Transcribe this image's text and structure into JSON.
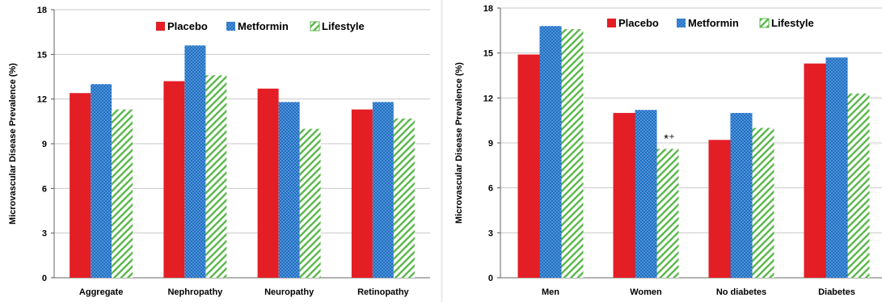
{
  "colors": {
    "placebo": "#e31e24",
    "metformin": "#1f6fc4",
    "lifestyle": "#5ab74a"
  },
  "chart_data": [
    {
      "type": "bar",
      "ylabel": "Microvascular Disease Prevalence (%)",
      "ylim": [
        0,
        18
      ],
      "yticks": [
        "0",
        "3",
        "6",
        "9",
        "12",
        "15",
        "18"
      ],
      "grid": true,
      "legend": "top-right",
      "categories": [
        "Aggregate",
        "Nephropathy",
        "Neuropathy",
        "Retinopathy"
      ],
      "series": [
        {
          "name": "Placebo",
          "pattern": "solid",
          "values": [
            12.4,
            13.2,
            12.7,
            11.3
          ]
        },
        {
          "name": "Metformin",
          "pattern": "dots",
          "values": [
            13.0,
            15.6,
            11.8,
            11.8
          ]
        },
        {
          "name": "Lifestyle",
          "pattern": "stripes",
          "values": [
            11.3,
            13.6,
            10.0,
            10.7
          ]
        }
      ],
      "annotations": []
    },
    {
      "type": "bar",
      "ylabel": "Microvascular Disease Prevalence (%)",
      "ylim": [
        0,
        18
      ],
      "yticks": [
        "0",
        "3",
        "6",
        "9",
        "12",
        "15",
        "18"
      ],
      "grid": true,
      "legend": "top-right",
      "categories": [
        "Men",
        "Women",
        "No diabetes",
        "Diabetes"
      ],
      "series": [
        {
          "name": "Placebo",
          "pattern": "solid",
          "values": [
            14.9,
            11.0,
            9.2,
            14.3
          ]
        },
        {
          "name": "Metformin",
          "pattern": "dots",
          "values": [
            16.8,
            11.2,
            11.0,
            14.7
          ]
        },
        {
          "name": "Lifestyle",
          "pattern": "stripes",
          "values": [
            16.6,
            8.6,
            10.0,
            12.3
          ]
        }
      ],
      "annotations": [
        {
          "text": "*⁺",
          "category": "Women",
          "series": "Lifestyle"
        }
      ]
    }
  ]
}
